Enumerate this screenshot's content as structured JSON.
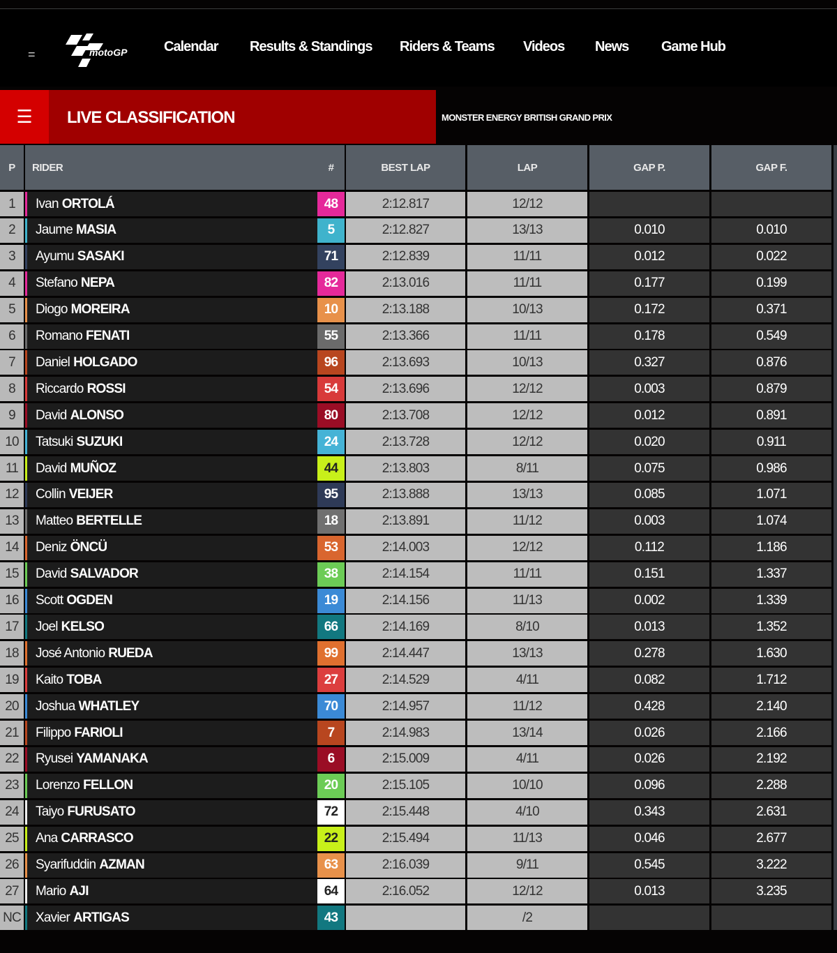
{
  "nav": {
    "logo": "motoGP",
    "items": [
      "Calendar",
      "Results & Standings",
      "Riders & Teams",
      "Videos",
      "News",
      "Game Hub"
    ]
  },
  "banner": {
    "title": "LIVE CLASSIFICATION",
    "event": "MONSTER ENERGY BRITISH GRAND PRIX"
  },
  "columns": {
    "p": "P",
    "rider": "RIDER",
    "num": "#",
    "best_lap": "BEST LAP",
    "lap": "LAP",
    "gap_p": "GAP P.",
    "gap_f": "GAP F."
  },
  "rows": [
    {
      "p": "1",
      "first": "Ivan",
      "last": "ORTOLÁ",
      "num": "48",
      "color": "#e5299a",
      "best": "2:12.817",
      "lap": "12/12",
      "gap_p": "",
      "gap_f": ""
    },
    {
      "p": "2",
      "first": "Jaume",
      "last": "MASIA",
      "num": "5",
      "color": "#3fb3cc",
      "best": "2:12.827",
      "lap": "13/13",
      "gap_p": "0.010",
      "gap_f": "0.010"
    },
    {
      "p": "3",
      "first": "Ayumu",
      "last": "SASAKI",
      "num": "71",
      "color": "#33425f",
      "best": "2:12.839",
      "lap": "11/11",
      "gap_p": "0.012",
      "gap_f": "0.022"
    },
    {
      "p": "4",
      "first": "Stefano",
      "last": "NEPA",
      "num": "82",
      "color": "#e5299a",
      "best": "2:13.016",
      "lap": "11/11",
      "gap_p": "0.177",
      "gap_f": "0.199"
    },
    {
      "p": "5",
      "first": "Diogo",
      "last": "MOREIRA",
      "num": "10",
      "color": "#e8914a",
      "best": "2:13.188",
      "lap": "10/13",
      "gap_p": "0.172",
      "gap_f": "0.371"
    },
    {
      "p": "6",
      "first": "Romano",
      "last": "FENATI",
      "num": "55",
      "color": "#6b6b6b",
      "best": "2:13.366",
      "lap": "11/11",
      "gap_p": "0.178",
      "gap_f": "0.549"
    },
    {
      "p": "7",
      "first": "Daniel",
      "last": "HOLGADO",
      "num": "96",
      "color": "#b8461f",
      "best": "2:13.693",
      "lap": "10/13",
      "gap_p": "0.327",
      "gap_f": "0.876"
    },
    {
      "p": "8",
      "first": "Riccardo",
      "last": "ROSSI",
      "num": "54",
      "color": "#d83a3a",
      "best": "2:13.696",
      "lap": "12/12",
      "gap_p": "0.003",
      "gap_f": "0.879"
    },
    {
      "p": "9",
      "first": "David",
      "last": "ALONSO",
      "num": "80",
      "color": "#9a0d25",
      "best": "2:13.708",
      "lap": "12/12",
      "gap_p": "0.012",
      "gap_f": "0.891"
    },
    {
      "p": "10",
      "first": "Tatsuki",
      "last": "SUZUKI",
      "num": "24",
      "color": "#45b3d6",
      "best": "2:13.728",
      "lap": "12/12",
      "gap_p": "0.020",
      "gap_f": "0.911"
    },
    {
      "p": "11",
      "first": "David",
      "last": "MUÑOZ",
      "num": "44",
      "color": "#c8f01a",
      "best": "2:13.803",
      "lap": "8/11",
      "gap_p": "0.075",
      "gap_f": "0.986",
      "dark": true
    },
    {
      "p": "12",
      "first": "Collin",
      "last": "VEIJER",
      "num": "95",
      "color": "#2e3a57",
      "best": "2:13.888",
      "lap": "13/13",
      "gap_p": "0.085",
      "gap_f": "1.071"
    },
    {
      "p": "13",
      "first": "Matteo",
      "last": "BERTELLE",
      "num": "18",
      "color": "#707070",
      "best": "2:13.891",
      "lap": "11/12",
      "gap_p": "0.003",
      "gap_f": "1.074"
    },
    {
      "p": "14",
      "first": "Deniz",
      "last": "ÖNCÜ",
      "num": "53",
      "color": "#d9662f",
      "best": "2:14.003",
      "lap": "12/12",
      "gap_p": "0.112",
      "gap_f": "1.186"
    },
    {
      "p": "15",
      "first": "David",
      "last": "SALVADOR",
      "num": "38",
      "color": "#6ccc56",
      "best": "2:14.154",
      "lap": "11/11",
      "gap_p": "0.151",
      "gap_f": "1.337"
    },
    {
      "p": "16",
      "first": "Scott",
      "last": "OGDEN",
      "num": "19",
      "color": "#3b8ad6",
      "best": "2:14.156",
      "lap": "11/13",
      "gap_p": "0.002",
      "gap_f": "1.339"
    },
    {
      "p": "17",
      "first": "Joel",
      "last": "KELSO",
      "num": "66",
      "color": "#127880",
      "best": "2:14.169",
      "lap": "8/10",
      "gap_p": "0.013",
      "gap_f": "1.352"
    },
    {
      "p": "18",
      "first": "José Antonio",
      "last": "RUEDA",
      "num": "99",
      "color": "#e0702f",
      "best": "2:14.447",
      "lap": "13/13",
      "gap_p": "0.278",
      "gap_f": "1.630"
    },
    {
      "p": "19",
      "first": "Kaito",
      "last": "TOBA",
      "num": "27",
      "color": "#dc3e3e",
      "best": "2:14.529",
      "lap": "4/11",
      "gap_p": "0.082",
      "gap_f": "1.712"
    },
    {
      "p": "20",
      "first": "Joshua",
      "last": "WHATLEY",
      "num": "70",
      "color": "#3b8ad6",
      "best": "2:14.957",
      "lap": "11/12",
      "gap_p": "0.428",
      "gap_f": "2.140"
    },
    {
      "p": "21",
      "first": "Filippo",
      "last": "FARIOLI",
      "num": "7",
      "color": "#b8461f",
      "best": "2:14.983",
      "lap": "13/14",
      "gap_p": "0.026",
      "gap_f": "2.166"
    },
    {
      "p": "22",
      "first": "Ryusei",
      "last": "YAMANAKA",
      "num": "6",
      "color": "#9a0d25",
      "best": "2:15.009",
      "lap": "4/11",
      "gap_p": "0.026",
      "gap_f": "2.192"
    },
    {
      "p": "23",
      "first": "Lorenzo",
      "last": "FELLON",
      "num": "20",
      "color": "#6ccc56",
      "best": "2:15.105",
      "lap": "10/10",
      "gap_p": "0.096",
      "gap_f": "2.288"
    },
    {
      "p": "24",
      "first": "Taiyo",
      "last": "FURUSATO",
      "num": "72",
      "color": "#ffffff",
      "best": "2:15.448",
      "lap": "4/10",
      "gap_p": "0.343",
      "gap_f": "2.631",
      "dark": true
    },
    {
      "p": "25",
      "first": "Ana",
      "last": "CARRASCO",
      "num": "22",
      "color": "#c8f01a",
      "best": "2:15.494",
      "lap": "11/13",
      "gap_p": "0.046",
      "gap_f": "2.677",
      "dark": true
    },
    {
      "p": "26",
      "first": "Syarifuddin",
      "last": "AZMAN",
      "num": "63",
      "color": "#e8914a",
      "best": "2:16.039",
      "lap": "9/11",
      "gap_p": "0.545",
      "gap_f": "3.222"
    },
    {
      "p": "27",
      "first": "Mario",
      "last": "AJI",
      "num": "64",
      "color": "#ffffff",
      "best": "2:16.052",
      "lap": "12/12",
      "gap_p": "0.013",
      "gap_f": "3.235",
      "dark": true
    },
    {
      "p": "NC",
      "first": "Xavier",
      "last": "ARTIGAS",
      "num": "43",
      "color": "#127880",
      "best": "",
      "lap": "/2",
      "gap_p": "",
      "gap_f": ""
    }
  ]
}
